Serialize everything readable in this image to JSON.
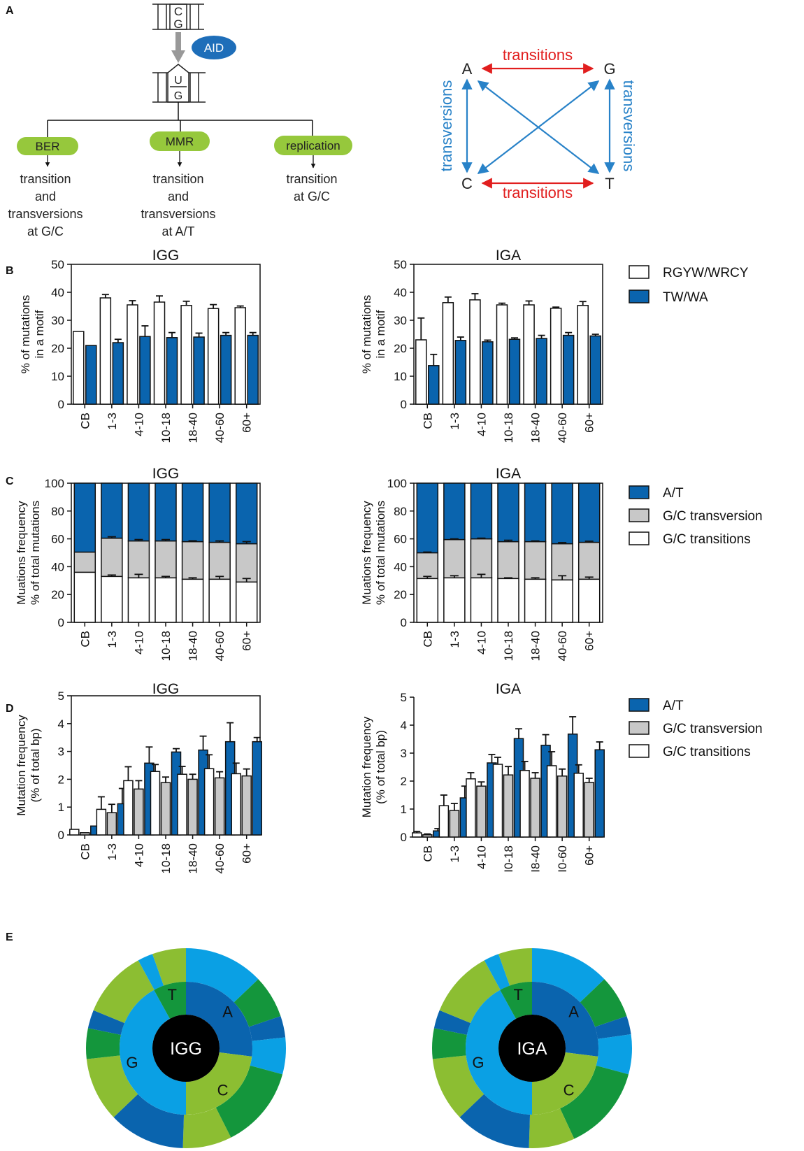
{
  "panels": {
    "A": "A",
    "B": "B",
    "C": "C",
    "D": "D",
    "E": "E"
  },
  "colors": {
    "white": "#ffffff",
    "grey": "#c8c8c8",
    "blue": "#0a64ae",
    "lightblue": "#0aa0e4",
    "green_light": "#8cbe32",
    "green_dark": "#14963c",
    "ber_green": "#96c83c",
    "aid_blue": "#1e6eb9",
    "transition_red": "#e11e1e",
    "transversion_blue": "#2882c8",
    "arrow_grey": "#999999"
  },
  "schematic": {
    "top_bases": [
      "C",
      "G"
    ],
    "aid_label": "AID",
    "mid_bases": [
      "U",
      "G"
    ],
    "pathways": [
      {
        "label": "BER",
        "outcome": [
          "transition",
          "and",
          "transversions",
          "at G/C"
        ]
      },
      {
        "label": "MMR",
        "outcome": [
          "transition",
          "and",
          "transversions",
          "at A/T"
        ]
      },
      {
        "label": "replication",
        "outcome": [
          "transition",
          "at G/C"
        ]
      }
    ],
    "square": {
      "bases": {
        "tl": "A",
        "tr": "G",
        "bl": "C",
        "br": "T"
      },
      "transitions_label": "transitions",
      "transversions_label": "transversions"
    }
  },
  "categories": [
    "CB",
    "1-3",
    "4-10",
    "10-18",
    "18-40",
    "40-60",
    "60+"
  ],
  "categories_D_IGA": [
    "CB",
    "1-3",
    "4-10",
    "I0-18",
    "I8-40",
    "I0-60",
    "60+"
  ],
  "chart_data": [
    {
      "id": "B-IGG",
      "type": "bar",
      "title": "IGG",
      "ylabel": [
        "% of mutations",
        "in a motif"
      ],
      "ylim": [
        0,
        50
      ],
      "yticks": [
        0,
        10,
        20,
        30,
        40,
        50
      ],
      "categories": [
        "CB",
        "1-3",
        "4-10",
        "10-18",
        "18-40",
        "40-60",
        "60+"
      ],
      "series": [
        {
          "name": "RGYW/WRCY",
          "color": "#ffffff",
          "values": [
            26,
            38,
            35.5,
            36.5,
            35.3,
            34.2,
            34.5
          ],
          "errors": [
            0,
            1.2,
            1.5,
            2.2,
            1.5,
            1.4,
            0.6
          ]
        },
        {
          "name": "TW/WA",
          "color": "#0a64ae",
          "values": [
            21,
            22,
            24.2,
            23.8,
            24,
            24.6,
            24.6
          ],
          "errors": [
            0,
            1.2,
            3.8,
            1.8,
            1.4,
            1.0,
            1.0
          ]
        }
      ]
    },
    {
      "id": "B-IGA",
      "type": "bar",
      "title": "IGA",
      "ylabel": [
        "% of mutations",
        "in a motif"
      ],
      "ylim": [
        0,
        50
      ],
      "yticks": [
        0,
        10,
        20,
        30,
        40,
        50
      ],
      "categories": [
        "CB",
        "1-3",
        "4-10",
        "10-18",
        "18-40",
        "40-60",
        "60+"
      ],
      "series": [
        {
          "name": "RGYW/WRCY",
          "color": "#ffffff",
          "values": [
            23,
            36.3,
            37.3,
            35.5,
            35.5,
            34.3,
            35.3
          ],
          "errors": [
            7.8,
            2,
            2.2,
            0.6,
            1.4,
            0.4,
            1.4
          ]
        },
        {
          "name": "TW/WA",
          "color": "#0a64ae",
          "values": [
            13.8,
            22.8,
            22.3,
            23.2,
            23.5,
            24.6,
            24.4
          ],
          "errors": [
            4,
            1.2,
            0.6,
            0.5,
            1.1,
            1.0,
            0.6
          ]
        }
      ]
    },
    {
      "id": "C-IGG",
      "type": "stacked-bar",
      "title": "IGG",
      "ylabel": [
        "Muations frequency",
        "% of total mutations"
      ],
      "ylim": [
        0,
        100
      ],
      "yticks": [
        0,
        20,
        40,
        60,
        80,
        100
      ],
      "categories": [
        "CB",
        "1-3",
        "4-10",
        "10-18",
        "18-40",
        "40-60",
        "60+"
      ],
      "series": [
        {
          "name": "G/C transitions",
          "color": "#ffffff",
          "values": [
            36,
            33,
            32,
            32,
            31,
            31,
            29
          ],
          "errors": [
            0,
            1,
            2.5,
            1,
            1,
            2,
            2.5
          ]
        },
        {
          "name": "G/C transversion",
          "color": "#c8c8c8",
          "values": [
            14.5,
            27.5,
            26.5,
            26.5,
            27,
            26.5,
            27.5
          ],
          "errors": [
            0,
            1,
            1,
            1,
            0.6,
            1,
            1.5
          ]
        },
        {
          "name": "A/T",
          "color": "#0a64ae",
          "values": [
            49.5,
            39.5,
            41.5,
            41.5,
            42,
            42.5,
            43.5
          ],
          "errors": [
            0,
            0,
            0,
            0,
            0,
            0,
            0
          ]
        }
      ]
    },
    {
      "id": "C-IGA",
      "type": "stacked-bar",
      "title": "IGA",
      "ylabel": [
        "Muations frequency",
        "% of total mutations"
      ],
      "ylim": [
        0,
        100
      ],
      "yticks": [
        0,
        20,
        40,
        60,
        80,
        100
      ],
      "categories": [
        "CB",
        "1-3",
        "4-10",
        "10-18",
        "18-40",
        "40-60",
        "60+"
      ],
      "series": [
        {
          "name": "G/C transitions",
          "color": "#ffffff",
          "values": [
            31.5,
            32,
            32,
            31.5,
            31,
            30.5,
            31
          ],
          "errors": [
            1.5,
            1.5,
            2.5,
            0.5,
            1,
            3,
            1.5
          ]
        },
        {
          "name": "G/C transversion",
          "color": "#c8c8c8",
          "values": [
            18.5,
            27.5,
            28,
            26.5,
            27,
            26,
            26.5
          ],
          "errors": [
            0.5,
            0.5,
            0.5,
            1,
            0.5,
            0.8,
            0.8
          ]
        },
        {
          "name": "A/T",
          "color": "#0a64ae",
          "values": [
            50,
            40.5,
            40,
            42,
            42,
            43.5,
            42.5
          ],
          "errors": [
            0,
            0,
            0,
            0,
            0,
            0,
            0
          ]
        }
      ]
    },
    {
      "id": "D-IGG",
      "type": "bar",
      "title": "IGG",
      "ylabel": [
        "Mutation frequency",
        "(% of total bp)"
      ],
      "ylim": [
        0,
        5
      ],
      "yticks": [
        0,
        1,
        2,
        3,
        4,
        5
      ],
      "categories": [
        "CB",
        "1-3",
        "4-10",
        "10-18",
        "18-40",
        "40-60",
        "60+"
      ],
      "series": [
        {
          "name": "G/C transitions",
          "color": "#ffffff",
          "values": [
            0.2,
            0.92,
            1.95,
            2.28,
            2.18,
            2.38,
            2.2
          ],
          "errors": [
            0,
            0.45,
            0.5,
            0.25,
            0.28,
            0.5,
            0.38
          ]
        },
        {
          "name": "G/C transversion",
          "color": "#c8c8c8",
          "values": [
            0.08,
            0.8,
            1.65,
            1.88,
            2.0,
            2.05,
            2.12
          ],
          "errors": [
            0,
            0.3,
            0.3,
            0.2,
            0.18,
            0.22,
            0.25
          ]
        },
        {
          "name": "A/T",
          "color": "#0a64ae",
          "values": [
            0.32,
            1.12,
            2.58,
            2.98,
            3.05,
            3.35,
            3.35
          ],
          "errors": [
            0,
            0.55,
            0.58,
            0.12,
            0.5,
            0.68,
            0.15
          ]
        }
      ]
    },
    {
      "id": "D-IGA",
      "type": "bar",
      "title": "IGA",
      "ylabel": [
        "Mutation frequency",
        "(% of total bp)"
      ],
      "ylim": [
        0,
        5
      ],
      "yticks": [
        0,
        1,
        2,
        3,
        4,
        5
      ],
      "categories": [
        "CB",
        "1-3",
        "4-10",
        "I0-18",
        "I8-40",
        "I0-60",
        "60+"
      ],
      "series": [
        {
          "name": "G/C transitions",
          "color": "#ffffff",
          "values": [
            0.15,
            1.12,
            2.08,
            2.6,
            2.38,
            2.55,
            2.28
          ],
          "errors": [
            0.05,
            0.38,
            0.22,
            0.25,
            0.32,
            0.5,
            0.3
          ]
        },
        {
          "name": "G/C transversion",
          "color": "#c8c8c8",
          "values": [
            0.08,
            0.95,
            1.82,
            2.22,
            2.1,
            2.18,
            1.95
          ],
          "errors": [
            0.03,
            0.25,
            0.15,
            0.3,
            0.2,
            0.25,
            0.15
          ]
        },
        {
          "name": "A/T",
          "color": "#0a64ae",
          "values": [
            0.22,
            1.4,
            2.65,
            3.52,
            3.28,
            3.68,
            3.12
          ],
          "errors": [
            0.08,
            0.42,
            0.3,
            0.35,
            0.38,
            0.62,
            0.28
          ]
        }
      ]
    },
    {
      "id": "E-IGG",
      "type": "pie",
      "title": "IGG",
      "inner": [
        {
          "label": "A",
          "value": 27,
          "color": "#0a64ae"
        },
        {
          "label": "C",
          "value": 23,
          "color": "#8cbe32"
        },
        {
          "label": "G",
          "value": 42,
          "color": "#0aa0e4"
        },
        {
          "label": "T",
          "value": 8,
          "color": "#14963c"
        }
      ],
      "outer": [
        {
          "value": 13,
          "color": "#0aa0e4"
        },
        {
          "value": 7,
          "color": "#14963c"
        },
        {
          "value": 3.5,
          "color": "#0a64ae"
        },
        {
          "value": 6,
          "color": "#0aa0e4"
        },
        {
          "value": 13.5,
          "color": "#14963c"
        },
        {
          "value": 8,
          "color": "#8cbe32"
        },
        {
          "value": 12.5,
          "color": "#0a64ae"
        },
        {
          "value": 10.5,
          "color": "#8cbe32"
        },
        {
          "value": 5,
          "color": "#14963c"
        },
        {
          "value": 3,
          "color": "#0a64ae"
        },
        {
          "value": 11,
          "color": "#8cbe32"
        },
        {
          "value": 2.5,
          "color": "#0aa0e4"
        },
        {
          "value": 5.5,
          "color": "#8cbe32"
        }
      ]
    },
    {
      "id": "E-IGA",
      "type": "pie",
      "title": "IGA",
      "inner": [
        {
          "label": "A",
          "value": 27,
          "color": "#0a64ae"
        },
        {
          "label": "C",
          "value": 23,
          "color": "#8cbe32"
        },
        {
          "label": "G",
          "value": 42,
          "color": "#0aa0e4"
        },
        {
          "label": "T",
          "value": 8,
          "color": "#14963c"
        }
      ],
      "outer": [
        {
          "value": 13,
          "color": "#0aa0e4"
        },
        {
          "value": 7,
          "color": "#14963c"
        },
        {
          "value": 3,
          "color": "#0a64ae"
        },
        {
          "value": 6.5,
          "color": "#0aa0e4"
        },
        {
          "value": 14,
          "color": "#14963c"
        },
        {
          "value": 7.5,
          "color": "#8cbe32"
        },
        {
          "value": 12.5,
          "color": "#0a64ae"
        },
        {
          "value": 10.5,
          "color": "#8cbe32"
        },
        {
          "value": 5,
          "color": "#14963c"
        },
        {
          "value": 3,
          "color": "#0a64ae"
        },
        {
          "value": 11,
          "color": "#8cbe32"
        },
        {
          "value": 2.5,
          "color": "#0aa0e4"
        },
        {
          "value": 5.5,
          "color": "#8cbe32"
        }
      ]
    }
  ]
}
